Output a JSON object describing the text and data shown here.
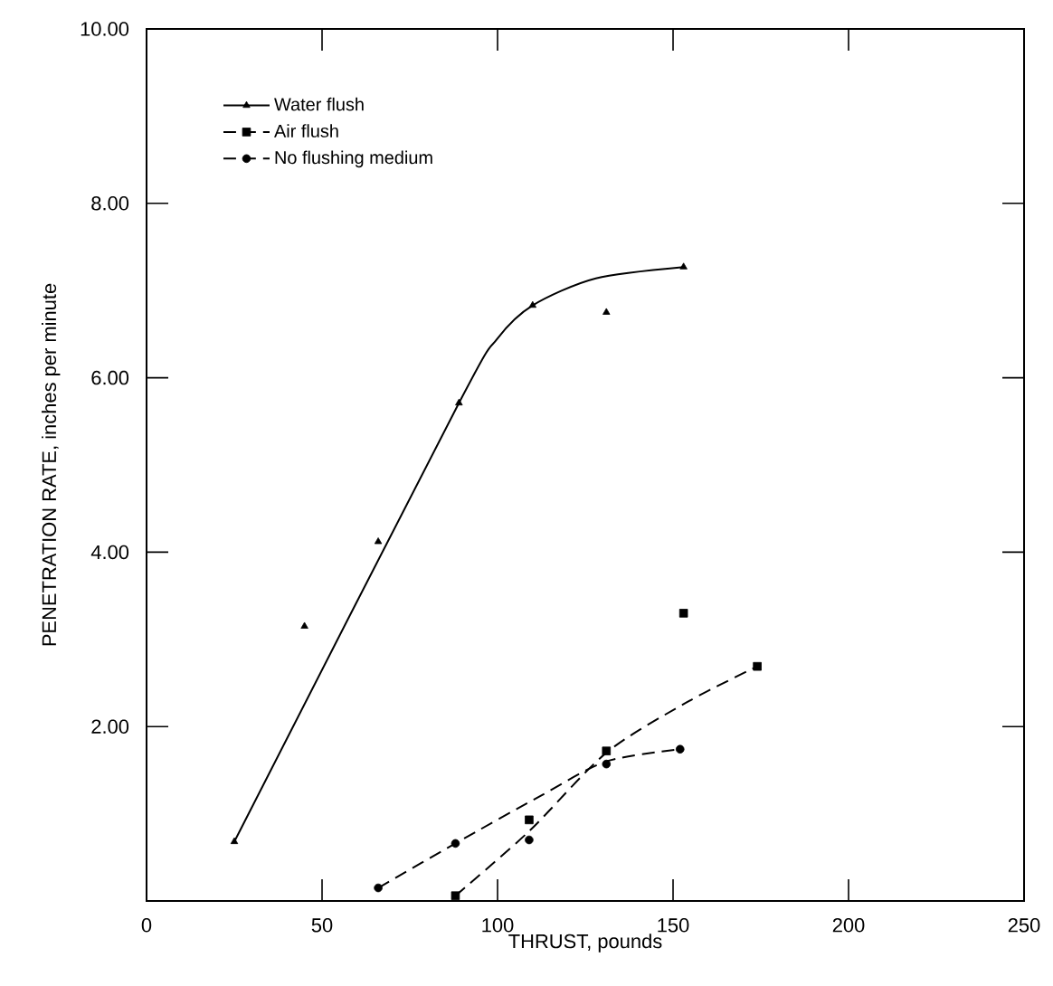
{
  "chart_data": {
    "type": "scatter",
    "xlabel": "THRUST, pounds",
    "ylabel": "PENETRATION RATE, inches per minute",
    "xlim": [
      0,
      250
    ],
    "ylim": [
      0,
      10
    ],
    "xticks": [
      0,
      50,
      100,
      150,
      200,
      250
    ],
    "yticks": [
      {
        "value": 0,
        "label": null
      },
      {
        "value": 2,
        "label": "2.00"
      },
      {
        "value": 4,
        "label": "4.00"
      },
      {
        "value": 6,
        "label": "6.00"
      },
      {
        "value": 8,
        "label": "8.00"
      },
      {
        "value": 10,
        "label": "10.00"
      }
    ],
    "grid": false,
    "legend": "top left",
    "series": [
      {
        "name": "Water flush",
        "marker": "triangle",
        "color": "#000000",
        "x": [
          25,
          45,
          66,
          89,
          110,
          131,
          153
        ],
        "values": [
          0.68,
          3.15,
          4.12,
          5.71,
          6.83,
          6.75,
          7.27
        ]
      },
      {
        "type": "line",
        "line_style": "solid",
        "color": "#000000",
        "x": [
          25,
          89,
          100,
          110,
          128,
          153
        ],
        "values": [
          0.68,
          5.71,
          6.45,
          6.83,
          7.14,
          7.27
        ]
      },
      {
        "name": "Air flush",
        "marker": "square",
        "color": "#000000",
        "x": [
          88,
          109,
          131,
          153,
          174
        ],
        "values": [
          0.06,
          0.93,
          1.72,
          3.3,
          2.69
        ]
      },
      {
        "type": "line",
        "line_style": "dashed",
        "color": "#000000",
        "x": [
          88,
          109,
          131,
          154,
          174
        ],
        "values": [
          0.06,
          0.8,
          1.7,
          2.28,
          2.69
        ]
      },
      {
        "name": "No flushing medium",
        "marker": "circle",
        "color": "#000000",
        "x": [
          66,
          88,
          109,
          131,
          152
        ],
        "values": [
          0.15,
          0.66,
          0.7,
          1.57,
          1.74
        ]
      },
      {
        "type": "line",
        "line_style": "dashed",
        "color": "#000000",
        "x": [
          66,
          88,
          112,
          131,
          152
        ],
        "values": [
          0.15,
          0.66,
          1.2,
          1.6,
          1.74
        ]
      }
    ]
  }
}
